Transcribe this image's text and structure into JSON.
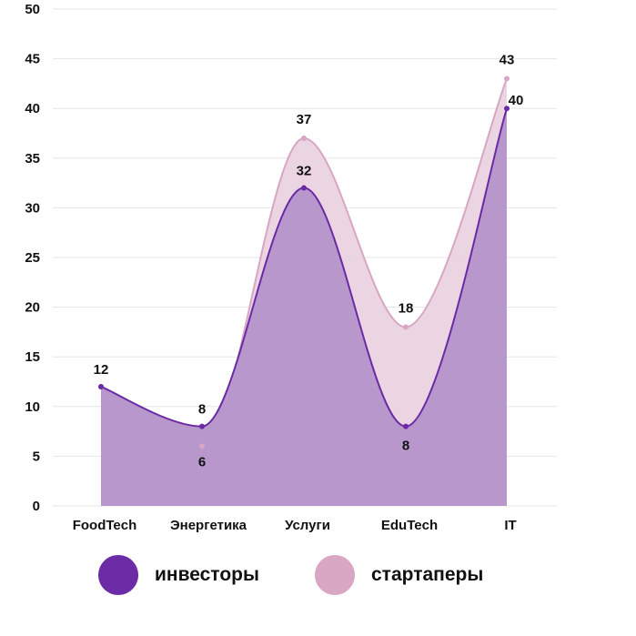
{
  "chart_data": {
    "type": "area",
    "categories": [
      "FoodTech",
      "Энергетика",
      "Услуги",
      "EduTech",
      "IT"
    ],
    "series": [
      {
        "name": "стартаперы",
        "values": [
          12,
          6,
          37,
          18,
          43
        ],
        "color": "#d8a6c2",
        "fill": "#ead3e0"
      },
      {
        "name": "инвесторы",
        "values": [
          12,
          8,
          32,
          8,
          40
        ],
        "color": "#6a2aa5",
        "fill": "#b898cc"
      }
    ],
    "ylim": [
      0,
      50
    ],
    "yticks": [
      0,
      5,
      10,
      15,
      20,
      25,
      30,
      35,
      40,
      45,
      50
    ],
    "grid": true,
    "legend_position": "bottom",
    "data_labels": true
  },
  "legend": {
    "investors": {
      "label": "инвесторы",
      "color": "#6b2ca6"
    },
    "startups": {
      "label": "стартаперы",
      "color": "#d9a7c3"
    }
  }
}
